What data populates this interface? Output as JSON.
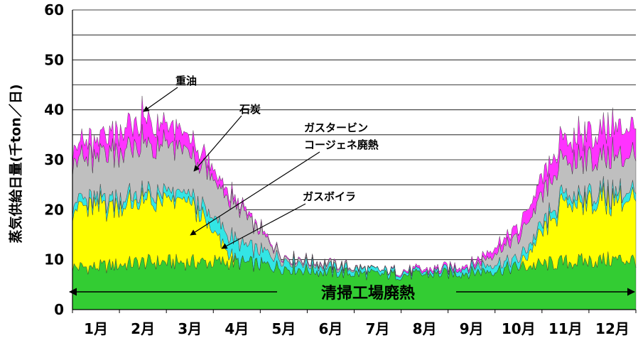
{
  "chart_data": {
    "type": "area",
    "title": "",
    "xlabel": "",
    "ylabel": "蒸気供給日量(千ton／日)",
    "ylim": [
      0,
      60
    ],
    "yticks": [
      "0",
      "10",
      "20",
      "30",
      "40",
      "50",
      "60"
    ],
    "categories": [
      "1月",
      "2月",
      "3月",
      "4月",
      "5月",
      "6月",
      "7月",
      "8月",
      "9月",
      "10月",
      "11月",
      "12月"
    ],
    "grid": true,
    "series": [
      {
        "name": "清掃工場廃熱",
        "color": "#33cc33",
        "values": [
          8.5,
          9.5,
          9.5,
          9.5,
          8.5,
          7.5,
          7,
          7,
          7.5,
          8.5,
          9.5,
          10
        ]
      },
      {
        "name": "ガスタービンコージェネ廃熱",
        "color": "#ffff00",
        "values": [
          12,
          12,
          12,
          0,
          0,
          0,
          0,
          0,
          0,
          0,
          12,
          12
        ]
      },
      {
        "name": "ガスボイラ",
        "color": "#33e5e5",
        "values": [
          1.5,
          1.5,
          1.5,
          4,
          1.5,
          1,
          0.8,
          0.5,
          1.2,
          1.5,
          1.5,
          1.5
        ]
      },
      {
        "name": "石炭",
        "color": "#bfbfbf",
        "values": [
          8.5,
          10,
          8.5,
          7,
          0.5,
          0.5,
          0,
          0,
          0,
          4.5,
          7,
          7.5
        ]
      },
      {
        "name": "重油",
        "color": "#ff33ff",
        "values": [
          3,
          5,
          3,
          1,
          0.2,
          0.2,
          0,
          0.5,
          0.5,
          2,
          4.5,
          6
        ]
      }
    ],
    "annotations": [
      {
        "text": "重油"
      },
      {
        "text": "石炭"
      },
      {
        "text": "ガスタービン"
      },
      {
        "text": "コージェネ廃熱"
      },
      {
        "text": "ガスボイラ"
      },
      {
        "text": "清掃工場廃熱"
      }
    ]
  }
}
